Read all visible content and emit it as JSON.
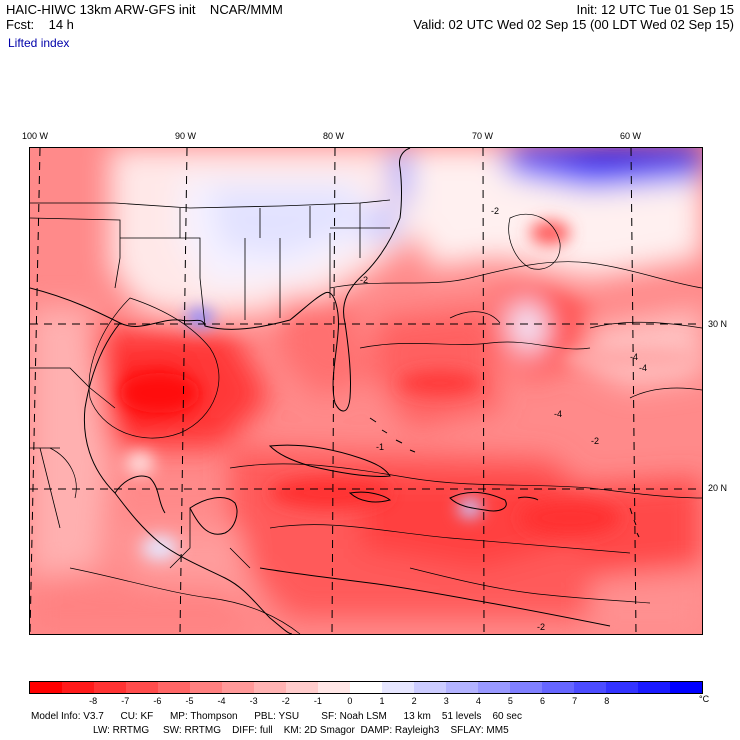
{
  "header": {
    "title": "HAIC-HIWC 13km ARW-GFS init    NCAR/MMM",
    "forecast": "Fcst:    14 h",
    "field": "Lifted index",
    "init": "Init: 12 UTC Tue 01 Sep 15",
    "valid": "Valid: 02 UTC Wed 02 Sep 15 (00 LDT Wed 02 Sep 15)"
  },
  "map": {
    "longitude_labels": [
      "100 W",
      "90 W",
      "80 W",
      "70 W",
      "60 W"
    ],
    "latitude_labels": [
      "30 N",
      "20 N"
    ],
    "contour_labels": [
      "-2",
      "-4",
      "-1",
      "-2",
      "-4",
      "-2",
      "-4",
      "-2"
    ]
  },
  "colorbar": {
    "colors": [
      "#ff0000",
      "#ff1a1a",
      "#ff3333",
      "#ff4c4c",
      "#ff6666",
      "#ff8080",
      "#ff9999",
      "#ffb3b3",
      "#ffcccc",
      "#ffe6e6",
      "#ffffff",
      "#e6e6ff",
      "#ccccff",
      "#b3b3ff",
      "#9999ff",
      "#8080ff",
      "#6666ff",
      "#4c4cff",
      "#3333ff",
      "#1a1aff",
      "#0000ff"
    ],
    "tick_labels": [
      "-8",
      "-7",
      "-6",
      "-5",
      "-4",
      "-3",
      "-2",
      "-1",
      "0",
      "1",
      "2",
      "3",
      "4",
      "5",
      "6",
      "7",
      "8"
    ],
    "unit": "°C"
  },
  "model_info": {
    "line1": "Model Info: V3.7      CU: KF      MP: Thompson      PBL: YSU        SF: Noah LSM      13 km    51 levels    60 sec",
    "line2": "LW: RRTMG     SW: RRTMG    DIFF: full    KM: 2D Smagor  DAMP: Rayleigh3    SFLAY: MM5"
  }
}
